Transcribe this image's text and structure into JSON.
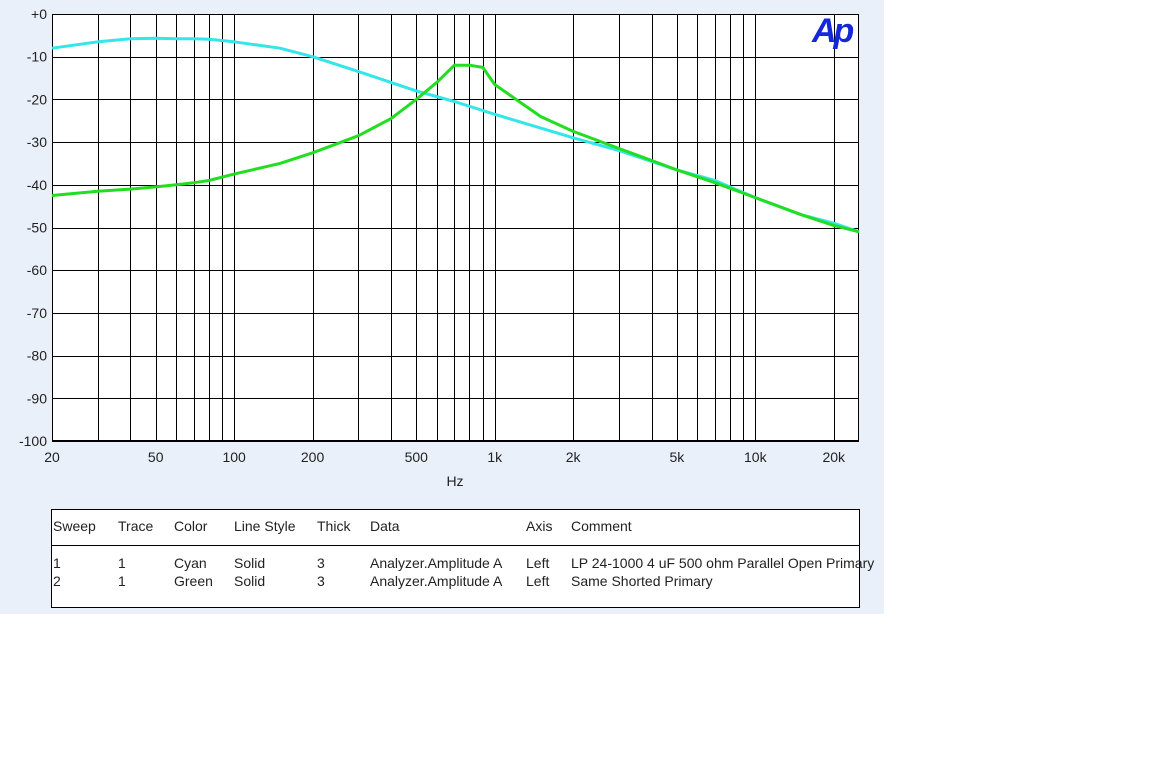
{
  "chart_data": {
    "type": "line",
    "title": "",
    "xlabel": "Hz",
    "ylabel": "",
    "x_scale": "log",
    "xlim": [
      20,
      25000
    ],
    "ylim": [
      -100,
      0
    ],
    "x_ticks": [
      20,
      50,
      100,
      200,
      500,
      1000,
      2000,
      5000,
      10000,
      20000
    ],
    "x_tick_labels": [
      "20",
      "50",
      "100",
      "200",
      "500",
      "1k",
      "2k",
      "5k",
      "10k",
      "20k"
    ],
    "y_ticks": [
      0,
      -10,
      -20,
      -30,
      -40,
      -50,
      -60,
      -70,
      -80,
      -90,
      -100
    ],
    "y_tick_labels": [
      "+0",
      "-10",
      "-20",
      "-30",
      "-40",
      "-50",
      "-60",
      "-70",
      "-80",
      "-90",
      "-100"
    ],
    "grid": true,
    "series": [
      {
        "color": "#33e6ea",
        "x": [
          20,
          30,
          40,
          50,
          60,
          70,
          80,
          100,
          150,
          200,
          300,
          500,
          700,
          1000,
          2000,
          3000,
          5000,
          7000,
          10000,
          15000,
          20000,
          25000
        ],
        "y": [
          -8,
          -6.5,
          -5.8,
          -5.7,
          -5.8,
          -5.8,
          -5.9,
          -6.5,
          -8,
          -10,
          -13.5,
          -18,
          -20.5,
          -23.5,
          -29,
          -32,
          -36.5,
          -39,
          -43,
          -47,
          -49,
          -51
        ]
      },
      {
        "color": "#22dd22",
        "x": [
          20,
          30,
          40,
          50,
          60,
          70,
          80,
          100,
          150,
          200,
          300,
          400,
          500,
          600,
          700,
          800,
          900,
          1000,
          1500,
          2000,
          3000,
          5000,
          7000,
          10000,
          15000,
          20000,
          25000
        ],
        "y": [
          -42.5,
          -41.5,
          -41,
          -40.5,
          -40,
          -39.5,
          -39,
          -37.5,
          -35,
          -32.5,
          -28.5,
          -24.5,
          -20,
          -16,
          -12,
          -12,
          -12.5,
          -16.5,
          -24,
          -27.5,
          -31.5,
          -36.5,
          -39.5,
          -43,
          -47,
          -49.5,
          -51
        ]
      }
    ]
  },
  "logo_text": "Ap",
  "legend": {
    "headers": {
      "sweep": "Sweep",
      "trace": "Trace",
      "color": "Color",
      "line_style": "Line Style",
      "thick": "Thick",
      "data": "Data",
      "axis": "Axis",
      "comment": "Comment"
    },
    "rows": [
      {
        "sweep": "1",
        "trace": "1",
        "color": "Cyan",
        "line_style": "Solid",
        "thick": "3",
        "data": "Analyzer.Amplitude A",
        "axis": "Left",
        "comment": "LP 24-1000 4 uF 500 ohm Parallel Open Primary"
      },
      {
        "sweep": "2",
        "trace": "1",
        "color": "Green",
        "line_style": "Solid",
        "thick": "3",
        "data": "Analyzer.Amplitude A",
        "axis": "Left",
        "comment": "Same Shorted Primary"
      }
    ]
  }
}
